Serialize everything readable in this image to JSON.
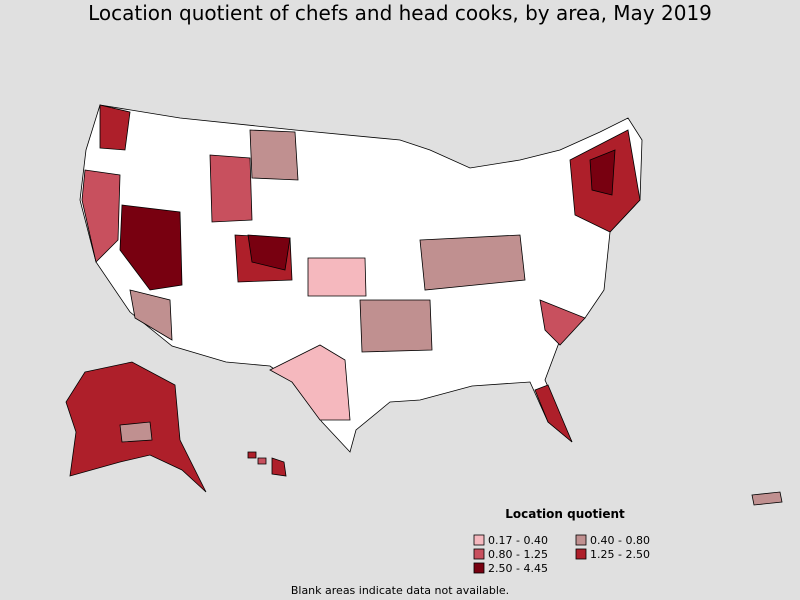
{
  "title": "Location quotient of chefs and head cooks, by area, May 2019",
  "legend": {
    "title": "Location quotient",
    "items": [
      {
        "label": "0.17 - 0.40",
        "color": "#f5b8be"
      },
      {
        "label": "0.40 - 0.80",
        "color": "#c09090"
      },
      {
        "label": "0.80 - 1.25",
        "color": "#c8505e"
      },
      {
        "label": "1.25 - 2.50",
        "color": "#ae1f2a"
      },
      {
        "label": "2.50 - 4.45",
        "color": "#780010"
      }
    ]
  },
  "note": "Blank areas indicate data not available."
}
